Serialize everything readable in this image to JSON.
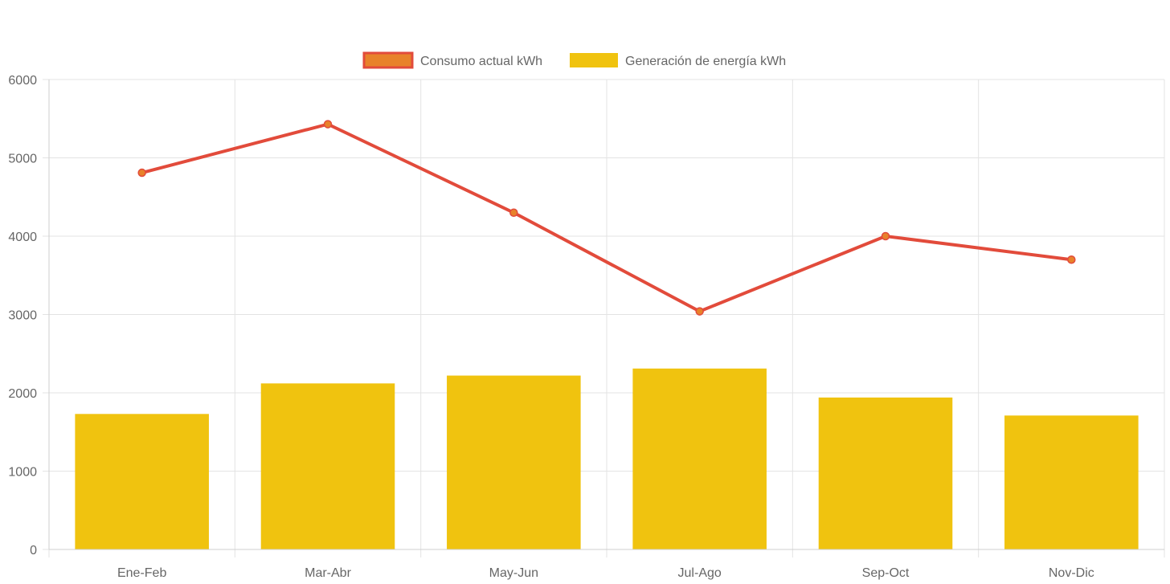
{
  "chart_data": {
    "type": "bar",
    "title": "",
    "xlabel": "",
    "ylabel": "",
    "categories": [
      "Ene-Feb",
      "Mar-Abr",
      "May-Jun",
      "Jul-Ago",
      "Sep-Oct",
      "Nov-Dic"
    ],
    "ylim": [
      0,
      6000
    ],
    "yticks": [
      0,
      1000,
      2000,
      3000,
      4000,
      5000,
      6000
    ],
    "grid": true,
    "legend_position": "top",
    "series": [
      {
        "name": "Consumo actual kWh",
        "kind": "line",
        "color": "#e24b3b",
        "point_color": "#e8822a",
        "values": [
          4810,
          5430,
          4300,
          3040,
          4000,
          3700
        ]
      },
      {
        "name": "Generación de energía kWh",
        "kind": "bar",
        "color": "#f0c30f",
        "values": [
          1730,
          2120,
          2220,
          2310,
          1940,
          1710
        ]
      }
    ]
  }
}
